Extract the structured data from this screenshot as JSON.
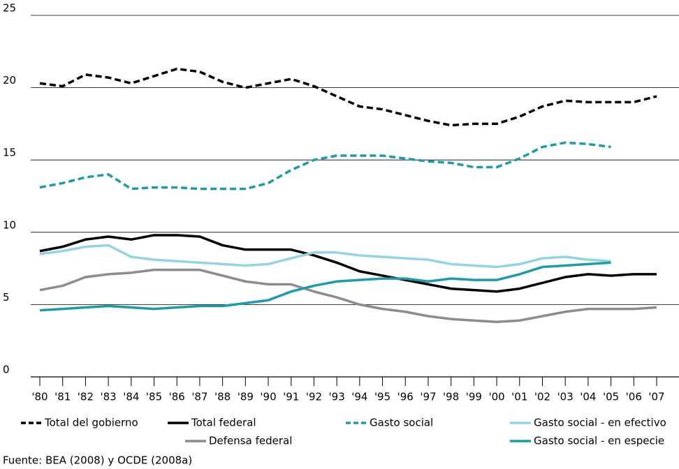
{
  "chart_data": {
    "type": "line",
    "categories": [
      "'80",
      "'81",
      "'82",
      "'83",
      "'84",
      "'85",
      "'86",
      "'87",
      "'88",
      "'89",
      "'90",
      "'91",
      "'92",
      "'93",
      "'94",
      "'95",
      "'96",
      "'97",
      "'98",
      "'99",
      "'00",
      "'01",
      "'02",
      "'03",
      "'04",
      "'05",
      "'06",
      "'07"
    ],
    "ylim": [
      0,
      25
    ],
    "yticks": [
      0,
      5,
      10,
      15,
      20,
      25
    ],
    "grid": true,
    "series": [
      {
        "name": "Total del gobierno",
        "color": "#000000",
        "style": "dashed",
        "values": [
          20.3,
          20.1,
          20.9,
          20.7,
          20.3,
          20.8,
          21.3,
          21.1,
          20.4,
          20.0,
          20.3,
          20.6,
          20.1,
          19.4,
          18.7,
          18.5,
          18.1,
          17.7,
          17.4,
          17.5,
          17.5,
          18.0,
          18.7,
          19.1,
          19.0,
          19.0,
          19.0,
          19.4
        ]
      },
      {
        "name": "Total federal",
        "color": "#000000",
        "style": "solid",
        "values": [
          8.7,
          9.0,
          9.5,
          9.7,
          9.5,
          9.8,
          9.8,
          9.7,
          9.1,
          8.8,
          8.8,
          8.8,
          8.4,
          7.9,
          7.3,
          7.0,
          6.7,
          6.4,
          6.1,
          6.0,
          5.9,
          6.1,
          6.5,
          6.9,
          7.1,
          7.0,
          7.1,
          7.1
        ]
      },
      {
        "name": "Gasto social",
        "color": "#1e9ba6",
        "style": "dashed",
        "values": [
          13.1,
          13.4,
          13.8,
          14.0,
          13.0,
          13.1,
          13.1,
          13.0,
          13.0,
          13.0,
          13.4,
          14.3,
          15.0,
          15.3,
          15.3,
          15.3,
          15.1,
          14.9,
          14.8,
          14.5,
          14.5,
          15.1,
          15.9,
          16.2,
          16.1,
          15.9,
          null,
          null
        ]
      },
      {
        "name": "Gasto social - en efectivo",
        "color": "#93d4e0",
        "style": "solid",
        "values": [
          8.5,
          8.7,
          9.0,
          9.1,
          8.3,
          8.1,
          8.0,
          7.9,
          7.8,
          7.7,
          7.8,
          8.2,
          8.6,
          8.6,
          8.4,
          8.3,
          8.2,
          8.1,
          7.8,
          7.7,
          7.6,
          7.8,
          8.2,
          8.3,
          8.1,
          8.0,
          null,
          null
        ]
      },
      {
        "name": "Defensa federal",
        "color": "#8c8c90",
        "style": "solid",
        "values": [
          6.0,
          6.3,
          6.9,
          7.1,
          7.2,
          7.4,
          7.4,
          7.4,
          7.0,
          6.6,
          6.4,
          6.4,
          5.9,
          5.5,
          5.0,
          4.7,
          4.5,
          4.2,
          4.0,
          3.9,
          3.8,
          3.9,
          4.2,
          4.5,
          4.7,
          4.7,
          4.7,
          4.8
        ]
      },
      {
        "name": "Gasto social - en especie",
        "color": "#1e9ba6",
        "style": "solid",
        "values": [
          4.6,
          4.7,
          4.8,
          4.9,
          4.8,
          4.7,
          4.8,
          4.9,
          4.9,
          5.1,
          5.3,
          5.9,
          6.3,
          6.6,
          6.7,
          6.8,
          6.8,
          6.6,
          6.8,
          6.7,
          6.7,
          7.1,
          7.6,
          7.7,
          7.8,
          7.9,
          null,
          null
        ]
      }
    ],
    "source": "Fuente: BEA (2008) y OCDE (2008a)"
  }
}
